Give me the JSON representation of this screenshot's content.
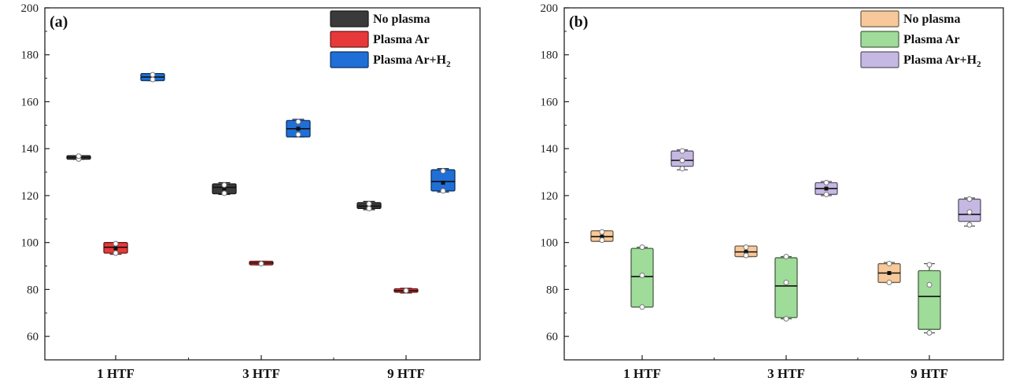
{
  "chart_data": [
    {
      "type": "box",
      "panel_label": "(a)",
      "categories": [
        "1 HTF",
        "3 HTF",
        "9 HTF"
      ],
      "ylim": [
        50,
        200
      ],
      "yticks": [
        60,
        80,
        100,
        120,
        140,
        160,
        180,
        200
      ],
      "xlabel": "",
      "ylabel": "",
      "legend_position": "top-right",
      "series": [
        {
          "name": "No plasma",
          "legend_main": "No plasma",
          "legend_sub": "",
          "color": "#3a3a3a",
          "boxes": [
            {
              "q1": 135.5,
              "median": 136.3,
              "q3": 137.0,
              "mean": 136.3,
              "min": 135.5,
              "max": 137.0,
              "points": [
                135.6,
                136.8
              ]
            },
            {
              "q1": 120.8,
              "median": 123.5,
              "q3": 125.0,
              "mean": 123.0,
              "min": 120.5,
              "max": 125.5,
              "points": [
                121.0,
                124.5
              ]
            },
            {
              "q1": 114.5,
              "median": 115.5,
              "q3": 117.0,
              "mean": 115.5,
              "min": 114.0,
              "max": 117.5,
              "points": [
                114.5,
                116.5
              ]
            }
          ]
        },
        {
          "name": "Plasma Ar",
          "legend_main": "Plasma Ar",
          "legend_sub": "",
          "color": "#e8393a",
          "boxes": [
            {
              "q1": 95.5,
              "median": 98.0,
              "q3": 100.0,
              "mean": 97.5,
              "min": 95.0,
              "max": 100.0,
              "points": [
                95.5,
                99.5
              ]
            },
            {
              "q1": 90.5,
              "median": 91.3,
              "q3": 92.0,
              "mean": 91.3,
              "min": 90.5,
              "max": 92.0,
              "points": [
                91.0
              ]
            },
            {
              "q1": 78.8,
              "median": 79.5,
              "q3": 80.3,
              "mean": 79.5,
              "min": 78.5,
              "max": 80.5,
              "points": [
                79.5
              ]
            }
          ]
        },
        {
          "name": "Plasma Ar+H2",
          "legend_main": "Plasma Ar+H",
          "legend_sub": "2",
          "color": "#1f6fd6",
          "boxes": [
            {
              "q1": 169.0,
              "median": 170.5,
              "q3": 172.0,
              "mean": 170.5,
              "min": 169.0,
              "max": 172.0,
              "points": [
                169.5,
                171.5
              ]
            },
            {
              "q1": 145.0,
              "median": 148.5,
              "q3": 152.0,
              "mean": 148.5,
              "min": 145.0,
              "max": 152.5,
              "points": [
                146.0,
                151.5
              ]
            },
            {
              "q1": 122.0,
              "median": 126.0,
              "q3": 131.0,
              "mean": 125.5,
              "min": 121.5,
              "max": 131.5,
              "points": [
                122.0,
                130.5
              ]
            }
          ]
        }
      ]
    },
    {
      "type": "box",
      "panel_label": "(b)",
      "categories": [
        "1 HTF",
        "3 HTF",
        "9 HTF"
      ],
      "ylim": [
        50,
        200
      ],
      "yticks": [
        60,
        80,
        100,
        120,
        140,
        160,
        180,
        200
      ],
      "xlabel": "",
      "ylabel": "",
      "legend_position": "top-right",
      "series": [
        {
          "name": "No plasma",
          "legend_main": "No plasma",
          "legend_sub": "",
          "color": "#f7c99a",
          "boxes": [
            {
              "q1": 100.5,
              "median": 102.5,
              "q3": 105.0,
              "mean": 102.5,
              "min": 100.5,
              "max": 105.0,
              "points": [
                101.0,
                104.5
              ]
            },
            {
              "q1": 94.0,
              "median": 96.0,
              "q3": 98.5,
              "mean": 96.0,
              "min": 94.0,
              "max": 98.5,
              "points": [
                94.5,
                98.0
              ]
            },
            {
              "q1": 83.0,
              "median": 87.0,
              "q3": 91.0,
              "mean": 87.0,
              "min": 83.0,
              "max": 91.5,
              "points": [
                83.0,
                91.0
              ]
            }
          ]
        },
        {
          "name": "Plasma Ar",
          "legend_main": "Plasma Ar",
          "legend_sub": "",
          "color": "#9fdb99",
          "boxes": [
            {
              "q1": 72.5,
              "median": 85.5,
              "q3": 97.5,
              "mean": 86.0,
              "min": 72.5,
              "max": 98.0,
              "points": [
                72.5,
                86.0,
                98.0
              ]
            },
            {
              "q1": 68.0,
              "median": 81.5,
              "q3": 93.5,
              "mean": 83.0,
              "min": 67.5,
              "max": 94.0,
              "points": [
                67.5,
                83.0,
                94.0
              ]
            },
            {
              "q1": 63.0,
              "median": 77.0,
              "q3": 88.0,
              "mean": 82.0,
              "min": 61.5,
              "max": 91.0,
              "points": [
                61.5,
                82.0,
                90.5
              ]
            }
          ]
        },
        {
          "name": "Plasma Ar+H2",
          "legend_main": "Plasma Ar+H",
          "legend_sub": "2",
          "color": "#c5b8e2",
          "boxes": [
            {
              "q1": 132.5,
              "median": 135.0,
              "q3": 139.0,
              "mean": 135.0,
              "min": 131.0,
              "max": 139.5,
              "points": [
                131.5,
                135.0,
                139.0
              ]
            },
            {
              "q1": 120.5,
              "median": 123.0,
              "q3": 125.5,
              "mean": 123.0,
              "min": 120.0,
              "max": 126.0,
              "points": [
                120.5,
                125.5
              ]
            },
            {
              "q1": 109.0,
              "median": 112.0,
              "q3": 118.5,
              "mean": 113.0,
              "min": 107.0,
              "max": 119.0,
              "points": [
                107.5,
                113.0,
                118.5
              ]
            }
          ]
        }
      ]
    }
  ]
}
